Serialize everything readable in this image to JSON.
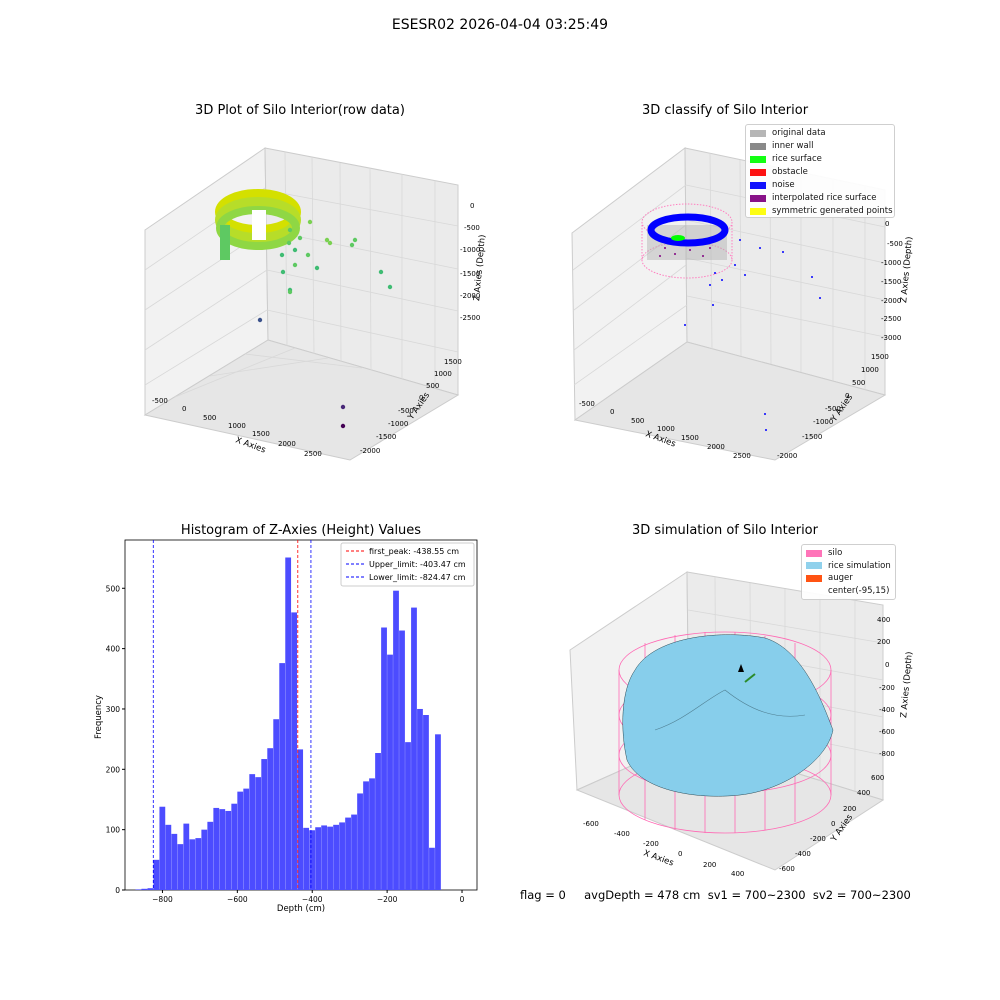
{
  "suptitle": "ESESR02 2026-04-04 03:25:49",
  "footer": "flag = 0     avgDepth = 478 cm  sv1 = 700~2300  sv2 = 700~2300",
  "panels": {
    "raw": {
      "title": "3D Plot of Silo Interior(row data)",
      "xlabel": "X Axies",
      "ylabel": "Y Axies",
      "zlabel": "Z Axies (Depth)",
      "xticks": [
        "-500",
        "0",
        "500",
        "1000",
        "1500",
        "2000",
        "2500"
      ],
      "yticks": [
        "1500",
        "1000",
        "500",
        "0",
        "-500",
        "-1000",
        "-1500",
        "-2000"
      ],
      "zticks": [
        "0",
        "-500",
        "-1000",
        "-1500",
        "-2000",
        "-2500"
      ]
    },
    "classify": {
      "title": "3D classify of Silo Interior",
      "xlabel": "X Axies",
      "ylabel": "Y Axies",
      "zlabel": "Z Axies (Depth)",
      "xticks": [
        "-500",
        "0",
        "500",
        "1000",
        "1500",
        "2000",
        "2500"
      ],
      "yticks": [
        "1500",
        "1000",
        "500",
        "0",
        "-500",
        "-1000",
        "-1500",
        "-2000"
      ],
      "zticks": [
        "0",
        "-500",
        "-1000",
        "-1500",
        "-2000",
        "-2500",
        "-3000"
      ],
      "legend": [
        {
          "label": "original data",
          "color": "#b0b0b0"
        },
        {
          "label": "inner wall",
          "color": "#808080"
        },
        {
          "label": "rice surface",
          "color": "#00ff00"
        },
        {
          "label": "obstacle",
          "color": "#ff0000"
        },
        {
          "label": "noise",
          "color": "#0000ff"
        },
        {
          "label": "interpolated rice surface",
          "color": "#800080"
        },
        {
          "label": "symmetric generated points",
          "color": "#ffff00"
        }
      ]
    },
    "simulation": {
      "title": "3D simulation of Silo Interior",
      "xlabel": "X Axies",
      "ylabel": "Y Axies",
      "zlabel": "Z Axies (Depth)",
      "xticks": [
        "-600",
        "-400",
        "-200",
        "0",
        "200",
        "400"
      ],
      "yticks": [
        "600",
        "400",
        "200",
        "0",
        "-200",
        "-400",
        "-600"
      ],
      "zticks": [
        "400",
        "200",
        "0",
        "-200",
        "-400",
        "-600",
        "-800"
      ],
      "legend": [
        {
          "label": "silo",
          "color": "#ff69b4"
        },
        {
          "label": "rice simulation",
          "color": "#87ceeb"
        },
        {
          "label": "auger",
          "color": "#ff4500"
        },
        {
          "label": "center(-95,15)",
          "color": "#ffffff"
        }
      ]
    }
  },
  "chart_data": {
    "type": "bar",
    "title": "Histogram of Z-Axies (Height) Values",
    "xlabel": "Depth (cm)",
    "ylabel": "Frequency",
    "xlim": [
      -900,
      40
    ],
    "ylim": [
      0,
      580
    ],
    "xticks": [
      -800,
      -600,
      -400,
      -200,
      0
    ],
    "yticks": [
      0,
      100,
      200,
      300,
      400,
      500
    ],
    "bar_color": "#4c4cff",
    "bin_width": 16,
    "bins": [
      [
        -872,
        1
      ],
      [
        -856,
        2
      ],
      [
        -840,
        3
      ],
      [
        -824,
        50
      ],
      [
        -808,
        138
      ],
      [
        -792,
        108
      ],
      [
        -776,
        93
      ],
      [
        -760,
        76
      ],
      [
        -744,
        110
      ],
      [
        -728,
        84
      ],
      [
        -712,
        86
      ],
      [
        -696,
        100
      ],
      [
        -680,
        113
      ],
      [
        -664,
        136
      ],
      [
        -648,
        134
      ],
      [
        -632,
        131
      ],
      [
        -616,
        143
      ],
      [
        -600,
        163
      ],
      [
        -584,
        168
      ],
      [
        -568,
        192
      ],
      [
        -552,
        187
      ],
      [
        -536,
        217
      ],
      [
        -520,
        235
      ],
      [
        -504,
        283
      ],
      [
        -488,
        376
      ],
      [
        -472,
        551
      ],
      [
        -456,
        460
      ],
      [
        -440,
        233
      ],
      [
        -424,
        103
      ],
      [
        -408,
        99
      ],
      [
        -392,
        104
      ],
      [
        -376,
        107
      ],
      [
        -360,
        105
      ],
      [
        -344,
        108
      ],
      [
        -328,
        112
      ],
      [
        -312,
        120
      ],
      [
        -296,
        125
      ],
      [
        -280,
        160
      ],
      [
        -264,
        180
      ],
      [
        -248,
        185
      ],
      [
        -232,
        227
      ],
      [
        -216,
        435
      ],
      [
        -200,
        390
      ],
      [
        -184,
        496
      ],
      [
        -168,
        430
      ],
      [
        -152,
        245
      ],
      [
        -136,
        468
      ],
      [
        -120,
        300
      ],
      [
        -104,
        290
      ],
      [
        -88,
        70
      ],
      [
        -72,
        258
      ]
    ],
    "lines": [
      {
        "x": -438.55,
        "color": "#ff0000",
        "label": "first_peak: -438.55 cm"
      },
      {
        "x": -403.47,
        "color": "#0000ff",
        "label": "Upper_limit: -403.47 cm"
      },
      {
        "x": -824.47,
        "color": "#0000ff",
        "label": "Lower_limit: -824.47 cm"
      }
    ],
    "legend_position": "top-right"
  }
}
